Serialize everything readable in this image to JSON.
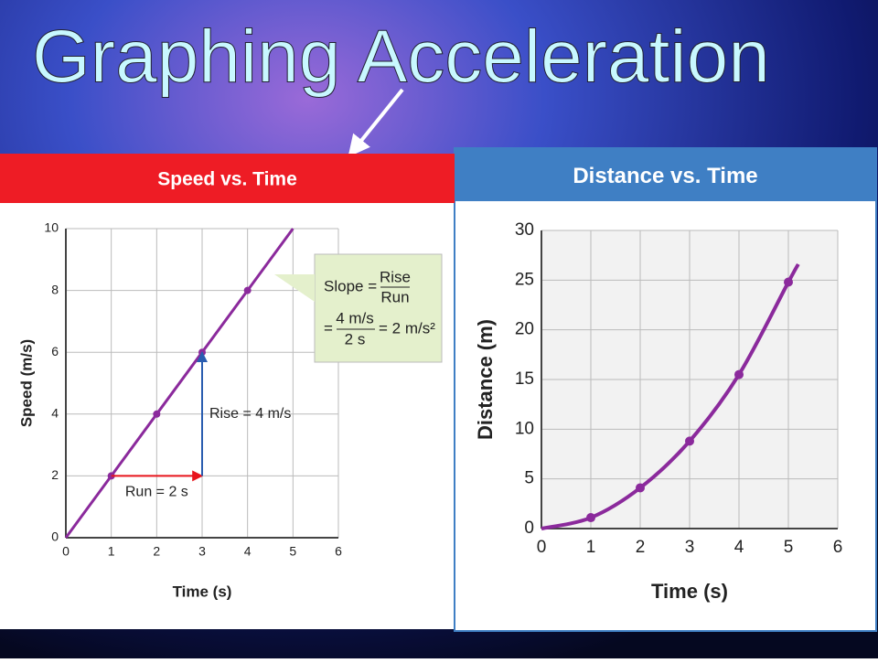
{
  "slide_title": "Graphing Acceleration",
  "chart_data": [
    {
      "type": "line",
      "title": "Speed vs. Time",
      "xlabel": "Time (s)",
      "ylabel": "Speed (m/s)",
      "x": [
        0,
        1,
        2,
        3,
        4,
        5
      ],
      "series": [
        {
          "color": "#8b2a9c",
          "values": [
            0,
            2,
            4,
            6,
            8,
            10
          ]
        }
      ],
      "xlim": [
        0,
        6
      ],
      "ylim": [
        0,
        10
      ],
      "xticks": [
        0,
        1,
        2,
        3,
        4,
        5,
        6
      ],
      "yticks": [
        0,
        2,
        4,
        6,
        8,
        10
      ],
      "grid": true,
      "smooth": false,
      "header_color": "#ee1c25",
      "arrows": [
        {
          "label": "Run = 2 s",
          "from": [
            1,
            2
          ],
          "to": [
            3,
            2
          ],
          "color": "#e8141c"
        },
        {
          "label": "Rise = 4 m/s",
          "from": [
            3,
            2
          ],
          "to": [
            3,
            6
          ],
          "color": "#2a5db0"
        }
      ],
      "callout": {
        "slope": "Slope =",
        "rise": "Rise",
        "run": "Run",
        "eq": "=",
        "num": "4 m/s",
        "den": "2 s",
        "result": "= 2 m/s²"
      }
    },
    {
      "type": "line",
      "title": "Distance vs. Time",
      "xlabel": "Time (s)",
      "ylabel": "Distance (m)",
      "x": [
        0,
        1,
        2,
        3,
        4,
        5,
        5.2
      ],
      "series": [
        {
          "color": "#8b2a9c",
          "values": [
            0,
            1.1,
            4.1,
            8.8,
            15.5,
            24.8,
            26.6
          ]
        }
      ],
      "xlim": [
        0,
        6
      ],
      "ylim": [
        0,
        30
      ],
      "xticks": [
        0,
        1,
        2,
        3,
        4,
        5,
        6
      ],
      "yticks": [
        0,
        5,
        10,
        15,
        20,
        25,
        30
      ],
      "grid": true,
      "smooth": true,
      "header_color": "#3f7fc4"
    }
  ]
}
